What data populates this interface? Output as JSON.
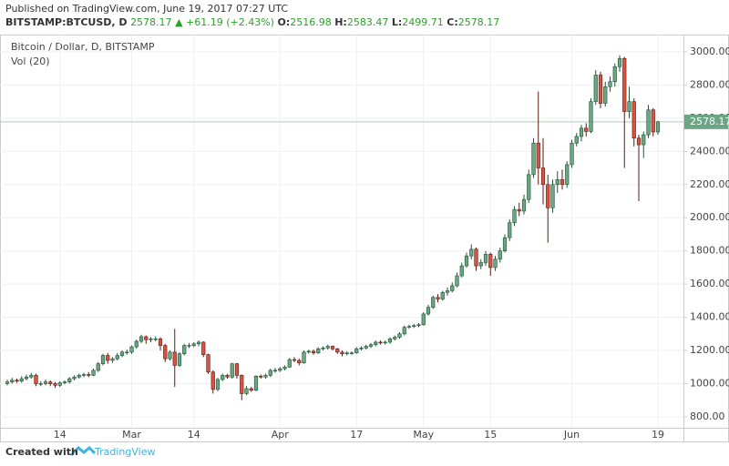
{
  "header": {
    "published": "Published on TradingView.com, June 19, 2017 07:27 UTC",
    "symbol": "BITSTAMP:BTCUSD, D",
    "change": "▲ +61.19 (+2.43%)",
    "o_label": "O:",
    "h_label": "H:",
    "l_label": "L:",
    "c_label": "C:"
  },
  "footer": {
    "created": "Created with",
    "brand": "TradingView"
  },
  "chart_data": {
    "type": "candlestick",
    "title": "Bitcoin / Dollar, D, BITSTAMP",
    "subtitle": "Vol (20)",
    "categories": [
      null,
      null,
      null,
      null,
      null,
      null,
      null,
      null,
      null,
      null,
      null,
      "14",
      null,
      null,
      null,
      null,
      null,
      null,
      null,
      null,
      null,
      null,
      null,
      null,
      null,
      null,
      "Mar",
      null,
      null,
      null,
      null,
      null,
      null,
      null,
      null,
      null,
      null,
      null,
      null,
      "14",
      null,
      null,
      null,
      null,
      null,
      null,
      null,
      null,
      null,
      null,
      null,
      null,
      null,
      null,
      null,
      null,
      null,
      "Apr",
      null,
      null,
      null,
      null,
      null,
      null,
      null,
      null,
      null,
      null,
      null,
      null,
      null,
      null,
      null,
      "17",
      null,
      null,
      null,
      null,
      null,
      null,
      null,
      null,
      null,
      null,
      null,
      null,
      null,
      "May",
      null,
      null,
      null,
      null,
      null,
      null,
      null,
      null,
      null,
      null,
      null,
      null,
      null,
      "15",
      null,
      null,
      null,
      null,
      null,
      null,
      null,
      null,
      null,
      null,
      null,
      null,
      null,
      null,
      null,
      null,
      "Jun",
      null,
      null,
      null,
      null,
      null,
      null,
      null,
      null,
      null,
      null,
      null,
      null,
      null,
      null,
      null,
      null,
      null,
      "19"
    ],
    "open": [
      1000,
      1010,
      1020,
      1015,
      1030,
      1040,
      1050,
      1000,
      1000,
      1010,
      1000,
      990,
      1005,
      1010,
      1030,
      1040,
      1050,
      1055,
      1050,
      1080,
      1120,
      1170,
      1140,
      1150,
      1170,
      1190,
      1190,
      1222,
      1255,
      1283,
      1265,
      1270,
      1270,
      1230,
      1150,
      1190,
      1110,
      1180,
      1230,
      1230,
      1240,
      1250,
      1175,
      1070,
      965,
      1025,
      1050,
      1040,
      1120,
      1050,
      940,
      970,
      960,
      1045,
      1040,
      1050,
      1080,
      1080,
      1090,
      1100,
      1145,
      1140,
      1125,
      1190,
      1195,
      1185,
      1210,
      1215,
      1225,
      1210,
      1190,
      1180,
      1185,
      1185,
      1210,
      1215,
      1225,
      1235,
      1250,
      1245,
      1250,
      1270,
      1280,
      1300,
      1340,
      1345,
      1350,
      1355,
      1420,
      1460,
      1520,
      1510,
      1550,
      1560,
      1590,
      1650,
      1710,
      1770,
      1810,
      1710,
      1730,
      1780,
      1700,
      1750,
      1800,
      1880,
      1970,
      2050,
      2040,
      2110,
      2260,
      2450,
      2300,
      2200,
      2060,
      2200,
      2230,
      2200,
      2320,
      2450,
      2490,
      2540,
      2520,
      2700,
      2860,
      2690,
      2790,
      2820,
      2910,
      2960,
      2640,
      2700,
      2480,
      2440,
      2500,
      2650,
      2516.98
    ],
    "high": [
      1025,
      1035,
      1030,
      1045,
      1055,
      1065,
      1060,
      1015,
      1025,
      1020,
      1010,
      1015,
      1020,
      1040,
      1050,
      1060,
      1065,
      1070,
      1090,
      1130,
      1180,
      1185,
      1160,
      1185,
      1200,
      1205,
      1230,
      1265,
      1295,
      1290,
      1280,
      1285,
      1280,
      1240,
      1200,
      1330,
      1190,
      1240,
      1245,
      1250,
      1260,
      1255,
      1180,
      1080,
      1035,
      1060,
      1060,
      1125,
      1125,
      1055,
      985,
      980,
      1050,
      1055,
      1060,
      1090,
      1095,
      1100,
      1110,
      1155,
      1160,
      1150,
      1200,
      1205,
      1205,
      1220,
      1225,
      1235,
      1230,
      1215,
      1200,
      1195,
      1195,
      1220,
      1225,
      1235,
      1245,
      1260,
      1260,
      1260,
      1280,
      1290,
      1310,
      1350,
      1355,
      1360,
      1365,
      1430,
      1475,
      1530,
      1540,
      1560,
      1580,
      1610,
      1670,
      1730,
      1790,
      1840,
      1820,
      1750,
      1800,
      1790,
      1770,
      1820,
      1900,
      1990,
      2070,
      2090,
      2140,
      2290,
      2480,
      2760,
      2480,
      2260,
      2230,
      2280,
      2290,
      2340,
      2470,
      2510,
      2560,
      2570,
      2720,
      2890,
      2880,
      2820,
      2850,
      2930,
      2980,
      2970,
      2790,
      2720,
      2500,
      2520,
      2680,
      2660,
      2583.47
    ],
    "low": [
      990,
      1000,
      1005,
      1005,
      1020,
      1030,
      985,
      985,
      990,
      985,
      975,
      980,
      995,
      1000,
      1020,
      1030,
      1040,
      1040,
      1045,
      1070,
      1110,
      1120,
      1125,
      1140,
      1160,
      1175,
      1180,
      1210,
      1245,
      1240,
      1250,
      1255,
      1200,
      1130,
      1140,
      980,
      1100,
      1170,
      1215,
      1220,
      1225,
      1160,
      1060,
      940,
      955,
      1015,
      1030,
      1030,
      1030,
      900,
      930,
      950,
      955,
      1030,
      1030,
      1040,
      1065,
      1070,
      1080,
      1095,
      1130,
      1110,
      1120,
      1180,
      1175,
      1180,
      1200,
      1205,
      1200,
      1180,
      1165,
      1170,
      1175,
      1180,
      1200,
      1205,
      1215,
      1225,
      1235,
      1235,
      1240,
      1260,
      1270,
      1290,
      1330,
      1335,
      1340,
      1350,
      1410,
      1450,
      1490,
      1500,
      1530,
      1550,
      1580,
      1640,
      1700,
      1750,
      1680,
      1690,
      1710,
      1650,
      1680,
      1730,
      1790,
      1860,
      1950,
      2010,
      2020,
      2090,
      2240,
      2200,
      2080,
      1850,
      2030,
      2150,
      2170,
      2180,
      2300,
      2430,
      2460,
      2490,
      2510,
      2680,
      2660,
      2670,
      2760,
      2790,
      2880,
      2300,
      2600,
      2430,
      2100,
      2360,
      2480,
      2490,
      2499.71
    ],
    "close": [
      1010,
      1020,
      1015,
      1030,
      1040,
      1050,
      1000,
      1000,
      1010,
      1000,
      990,
      1005,
      1010,
      1030,
      1040,
      1050,
      1055,
      1050,
      1080,
      1120,
      1170,
      1140,
      1150,
      1170,
      1190,
      1190,
      1222,
      1255,
      1283,
      1265,
      1270,
      1270,
      1230,
      1150,
      1190,
      1110,
      1180,
      1230,
      1230,
      1240,
      1250,
      1175,
      1070,
      965,
      1025,
      1050,
      1040,
      1120,
      1050,
      940,
      970,
      960,
      1045,
      1040,
      1050,
      1080,
      1080,
      1090,
      1100,
      1145,
      1140,
      1125,
      1190,
      1195,
      1185,
      1210,
      1215,
      1225,
      1210,
      1190,
      1180,
      1185,
      1185,
      1210,
      1215,
      1225,
      1235,
      1250,
      1245,
      1250,
      1270,
      1280,
      1300,
      1340,
      1345,
      1350,
      1355,
      1420,
      1460,
      1520,
      1510,
      1550,
      1560,
      1590,
      1650,
      1710,
      1770,
      1810,
      1710,
      1730,
      1780,
      1700,
      1750,
      1800,
      1880,
      1970,
      2050,
      2040,
      2110,
      2260,
      2450,
      2300,
      2200,
      2060,
      2200,
      2230,
      2200,
      2320,
      2450,
      2490,
      2540,
      2520,
      2700,
      2860,
      2690,
      2790,
      2820,
      2910,
      2960,
      2640,
      2700,
      2480,
      2440,
      2500,
      2650,
      2516.98,
      2578.17
    ],
    "up_color": "#6ba583",
    "down_color": "#d75442",
    "up_border": "#225437",
    "down_border": "#5b1a13",
    "ylim": [
      734,
      3104
    ],
    "yticks": [
      {
        "value": 800,
        "label": "800.00"
      },
      {
        "value": 1000,
        "label": "1000.00"
      },
      {
        "value": 1200,
        "label": "1200.00"
      },
      {
        "value": 1400,
        "label": "1400.00"
      },
      {
        "value": 1600,
        "label": "1600.00"
      },
      {
        "value": 1800,
        "label": "1800.00"
      },
      {
        "value": 2000,
        "label": "2000.00"
      },
      {
        "value": 2200,
        "label": "2200.00"
      },
      {
        "value": 2400,
        "label": "2400.00"
      },
      {
        "value": 2600,
        "label": "2600.00"
      },
      {
        "value": 2800,
        "label": "2800.00"
      },
      {
        "value": 3000,
        "label": "3000.00"
      }
    ],
    "grid": true
  }
}
